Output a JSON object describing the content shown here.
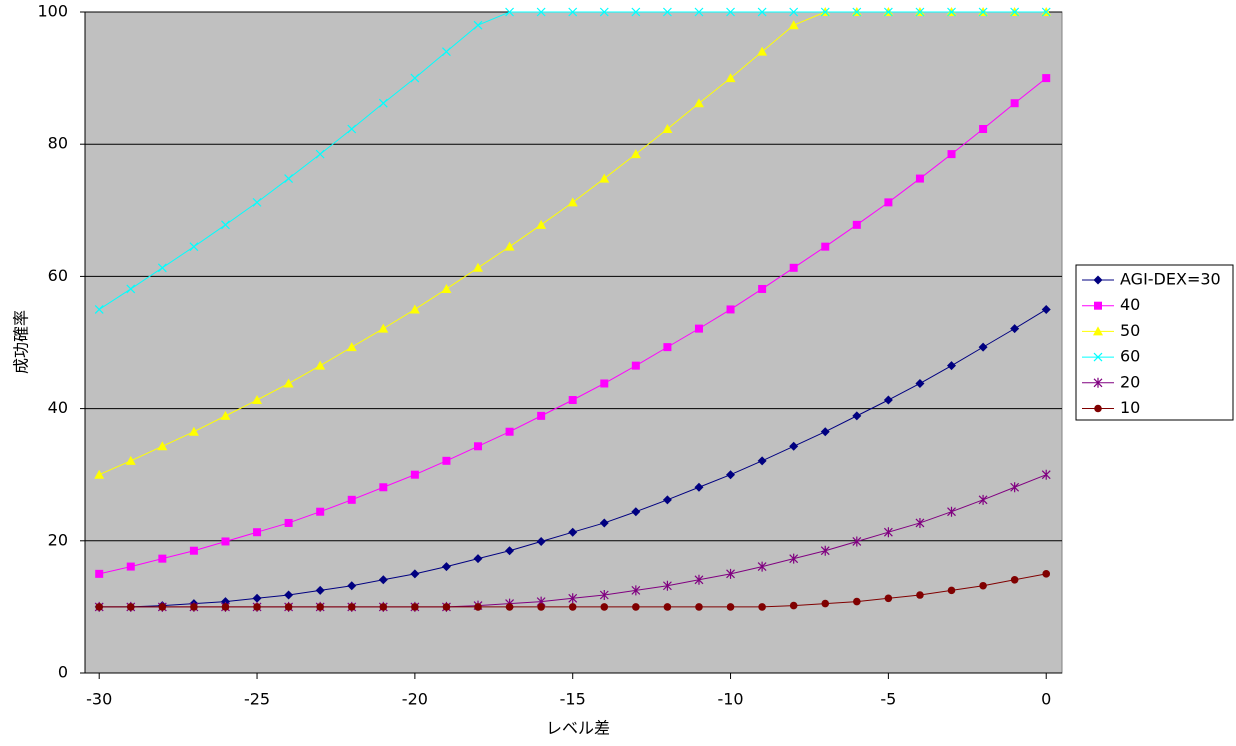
{
  "chart_data": {
    "type": "line",
    "x_label": "レベル差",
    "y_label": "成功確率",
    "x": [
      -30,
      -29,
      -28,
      -27,
      -26,
      -25,
      -24,
      -23,
      -22,
      -21,
      -20,
      -19,
      -18,
      -17,
      -16,
      -15,
      -14,
      -13,
      -12,
      -11,
      -10,
      -9,
      -8,
      -7,
      -6,
      -5,
      -4,
      -3,
      -2,
      -1,
      0
    ],
    "xlim": [
      -30.45,
      0.5
    ],
    "xticks": [
      -30,
      -25,
      -20,
      -15,
      -10,
      -5,
      0
    ],
    "ylim": [
      0,
      100
    ],
    "yticks": [
      0,
      20,
      40,
      60,
      80,
      100
    ],
    "grid": true,
    "background": "#c0c0c0",
    "legend": "right",
    "series": [
      {
        "name": "AGI-DEX=30",
        "color": "#000080",
        "marker": "diamond",
        "values": [
          10,
          10,
          10.2,
          10.5,
          10.8,
          11.3,
          11.8,
          12.5,
          13.2,
          14.1,
          15,
          16.1,
          17.3,
          18.5,
          19.9,
          21.3,
          22.7,
          24.4,
          26.2,
          28.1,
          30,
          32.1,
          34.3,
          36.5,
          38.9,
          41.3,
          43.8,
          46.5,
          49.3,
          52.1,
          55
        ]
      },
      {
        "name": "40",
        "color": "#ff00ff",
        "marker": "square",
        "values": [
          15,
          16.1,
          17.3,
          18.5,
          19.9,
          21.3,
          22.7,
          24.4,
          26.2,
          28.1,
          30,
          32.1,
          34.3,
          36.5,
          38.9,
          41.3,
          43.8,
          46.5,
          49.3,
          52.1,
          55,
          58.1,
          61.3,
          64.5,
          67.8,
          71.2,
          74.8,
          78.5,
          82.3,
          86.2,
          90
        ]
      },
      {
        "name": "50",
        "color": "#ffff00",
        "marker": "triangle",
        "values": [
          30,
          32.1,
          34.3,
          36.5,
          38.9,
          41.3,
          43.8,
          46.5,
          49.3,
          52.1,
          55,
          58.1,
          61.3,
          64.5,
          67.8,
          71.2,
          74.8,
          78.5,
          82.3,
          86.2,
          90,
          94,
          98,
          100,
          100,
          100,
          100,
          100,
          100,
          100,
          100
        ]
      },
      {
        "name": "60",
        "color": "#00ffff",
        "marker": "x",
        "values": [
          55,
          58.1,
          61.3,
          64.5,
          67.8,
          71.2,
          74.8,
          78.5,
          82.3,
          86.2,
          90,
          94,
          98,
          100,
          100,
          100,
          100,
          100,
          100,
          100,
          100,
          100,
          100,
          100,
          100,
          100,
          100,
          100,
          100,
          100,
          100
        ]
      },
      {
        "name": "20",
        "color": "#800080",
        "marker": "star",
        "values": [
          10,
          10,
          10,
          10,
          10,
          10,
          10,
          10,
          10,
          10,
          10,
          10,
          10.2,
          10.5,
          10.8,
          11.3,
          11.8,
          12.5,
          13.2,
          14.1,
          15,
          16.1,
          17.3,
          18.5,
          19.9,
          21.3,
          22.7,
          24.4,
          26.2,
          28.1,
          30
        ]
      },
      {
        "name": "10",
        "color": "#800000",
        "marker": "circle",
        "values": [
          10,
          10,
          10,
          10,
          10,
          10,
          10,
          10,
          10,
          10,
          10,
          10,
          10,
          10,
          10,
          10,
          10,
          10,
          10,
          10,
          10,
          10,
          10.2,
          10.5,
          10.8,
          11.3,
          11.8,
          12.5,
          13.2,
          14.1,
          15
        ]
      }
    ]
  }
}
